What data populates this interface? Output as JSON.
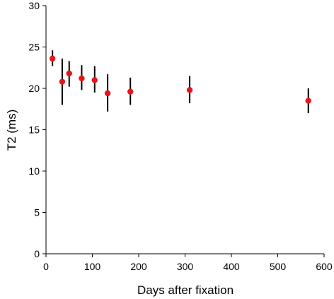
{
  "chart_data": {
    "type": "scatter",
    "xlabel": "Days after fixation",
    "ylabel": "T2 (ms)",
    "xlim": [
      0,
      600
    ],
    "ylim": [
      0,
      30
    ],
    "xticks": [
      0,
      100,
      200,
      300,
      400,
      500,
      600
    ],
    "yticks": [
      0,
      5,
      10,
      15,
      20,
      25,
      30
    ],
    "grid": false,
    "colors": {
      "point": "#e8141c",
      "error_bar": "#000000",
      "axis": "#000000"
    },
    "series": [
      {
        "points": [
          {
            "x": 14,
            "y": 23.6,
            "y_low": 22.7,
            "y_high": 24.6
          },
          {
            "x": 35,
            "y": 20.8,
            "y_low": 18.0,
            "y_high": 23.6
          },
          {
            "x": 50,
            "y": 21.8,
            "y_low": 20.2,
            "y_high": 23.3
          },
          {
            "x": 77,
            "y": 21.2,
            "y_low": 19.8,
            "y_high": 22.8
          },
          {
            "x": 105,
            "y": 21.0,
            "y_low": 19.5,
            "y_high": 22.7
          },
          {
            "x": 133,
            "y": 19.4,
            "y_low": 17.2,
            "y_high": 21.7
          },
          {
            "x": 182,
            "y": 19.6,
            "y_low": 18.0,
            "y_high": 21.3
          },
          {
            "x": 310,
            "y": 19.8,
            "y_low": 18.2,
            "y_high": 21.5
          },
          {
            "x": 566,
            "y": 18.5,
            "y_low": 17.0,
            "y_high": 20.0
          }
        ]
      }
    ]
  }
}
